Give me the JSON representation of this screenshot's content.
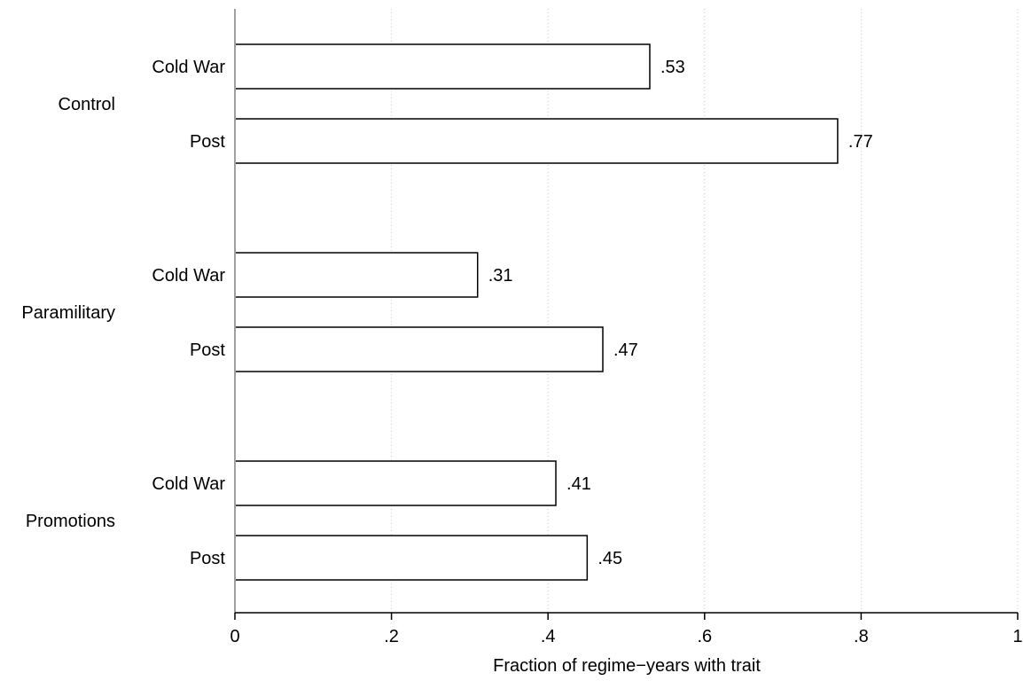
{
  "chart_data": {
    "type": "bar",
    "orientation": "horizontal",
    "groups": [
      {
        "label": "Control",
        "bars": [
          {
            "label": "Cold War",
            "value": 0.53,
            "value_label": ".53"
          },
          {
            "label": "Post",
            "value": 0.77,
            "value_label": ".77"
          }
        ]
      },
      {
        "label": "Paramilitary",
        "bars": [
          {
            "label": "Cold War",
            "value": 0.31,
            "value_label": ".31"
          },
          {
            "label": "Post",
            "value": 0.47,
            "value_label": ".47"
          }
        ]
      },
      {
        "label": "Promotions",
        "bars": [
          {
            "label": "Cold War",
            "value": 0.41,
            "value_label": ".41"
          },
          {
            "label": "Post",
            "value": 0.45,
            "value_label": ".45"
          }
        ]
      }
    ],
    "xlabel": "Fraction of regime−years with trait",
    "xlim": [
      0,
      1
    ],
    "xticks": [
      {
        "value": 0,
        "label": "0"
      },
      {
        "value": 0.2,
        "label": ".2"
      },
      {
        "value": 0.4,
        "label": ".4"
      },
      {
        "value": 0.6,
        "label": ".6"
      },
      {
        "value": 0.8,
        "label": ".8"
      },
      {
        "value": 1,
        "label": "1"
      }
    ],
    "grid": "vertical dotted",
    "legend": "none",
    "colors": {
      "bar_fill": "#ffffff",
      "bar_stroke": "#000000",
      "grid": "#c8c8c8",
      "baseline": "#a0a0a0"
    }
  }
}
